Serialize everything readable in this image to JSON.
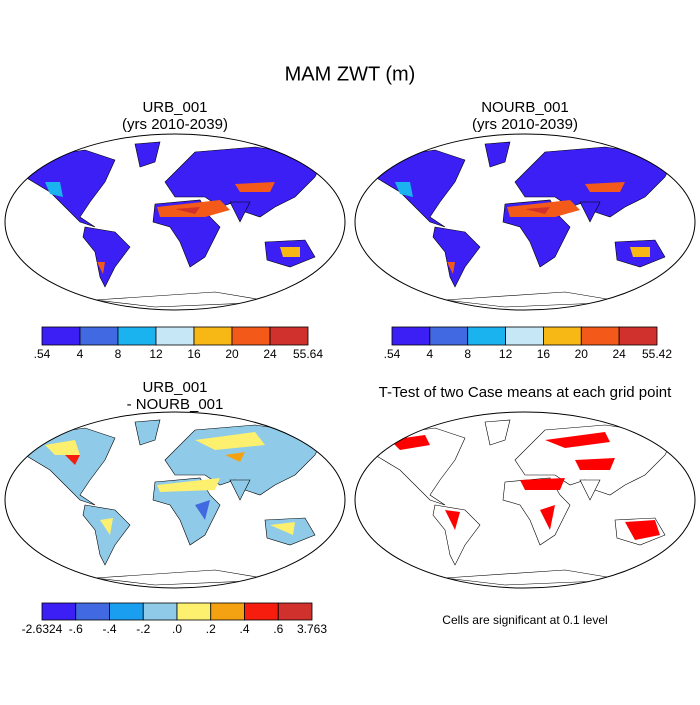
{
  "title": "MAM ZWT (m)",
  "panels": [
    {
      "title": [
        "URB_001",
        "(yrs 2010-2039)"
      ]
    },
    {
      "title": [
        "NOURB_001",
        "(yrs 2010-2039)"
      ]
    },
    {
      "title": [
        "URB_001",
        "- NOURB_001"
      ]
    },
    {
      "title": [
        "T-Test of two Case means at each grid point"
      ]
    }
  ],
  "colorbars": [
    {
      "labels": [
        ".54",
        "4",
        "8",
        "12",
        "16",
        "20",
        "24",
        "55.64"
      ],
      "colors": [
        "#3b1ff5",
        "#4169e1",
        "#1ab3f0",
        "#c6e7f5",
        "#f7b815",
        "#f35a1a",
        "#d0312d"
      ]
    },
    {
      "labels": [
        ".54",
        "4",
        "8",
        "12",
        "16",
        "20",
        "24",
        "55.42"
      ],
      "colors": [
        "#3b1ff5",
        "#4169e1",
        "#1ab3f0",
        "#c6e7f5",
        "#f7b815",
        "#f35a1a",
        "#d0312d"
      ]
    },
    {
      "labels": [
        "-2.6324",
        "-.6",
        "-.4",
        "-.2",
        ".0",
        ".2",
        ".4",
        ".6",
        "3.763"
      ],
      "colors": [
        "#3b1ff5",
        "#4169e1",
        "#1a9ff0",
        "#8fcbe8",
        "#fdf06e",
        "#f5a212",
        "#f71d0e",
        "#d0312d"
      ]
    }
  ],
  "note": "Cells are significant at 0.1 level"
}
